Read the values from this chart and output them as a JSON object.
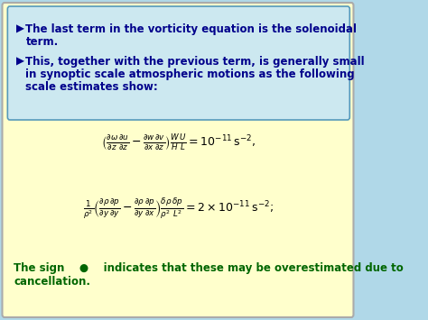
{
  "bg_outer": "#b0d8e8",
  "bg_box": "#ffffcc",
  "bg_text_box": "#cce8f0",
  "bullet_color": "#00008B",
  "bullet_text_color": "#00008B",
  "eq_color": "#000000",
  "sign_color": "#006600",
  "bullet1_line1": "The last term in the vorticity equation is the solenoidal",
  "bullet1_line2": "term.",
  "bullet2_line1": "This, together with the previous term, is generally small",
  "bullet2_line2": "in synoptic scale atmospheric motions as the following",
  "bullet2_line3": "scale estimates show:",
  "sign_line1": "The sign    ●    indicates that these may be overestimated due to",
  "sign_line2": "cancellation.",
  "bullet_arrow": "▶",
  "bullet_fontsize": 8.5,
  "eq_fontsize": 9.0,
  "sign_fontsize": 8.5,
  "fig_w": 4.74,
  "fig_h": 3.55,
  "dpi": 100
}
